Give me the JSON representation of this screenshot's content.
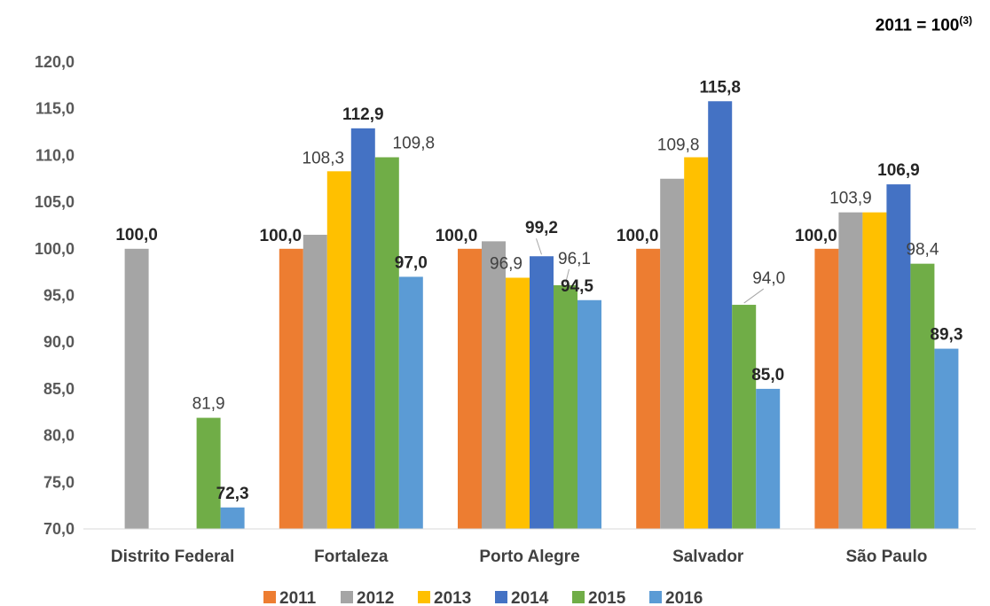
{
  "note": {
    "text": "2011 = 100",
    "sup": "(3)"
  },
  "colors": {
    "2011": "#ED7D31",
    "2012": "#A5A5A5",
    "2013": "#FFC000",
    "2014": "#4472C4",
    "2015": "#70AD47",
    "2016": "#5B9BD5"
  },
  "chart_data": {
    "type": "bar",
    "title": "",
    "xlabel": "",
    "ylabel": "",
    "ylim": [
      70,
      120
    ],
    "yticks": [
      "70,0",
      "75,0",
      "80,0",
      "85,0",
      "90,0",
      "95,0",
      "100,0",
      "105,0",
      "110,0",
      "115,0",
      "120,0"
    ],
    "categories": [
      "Distrito Federal",
      "Fortaleza",
      "Porto Alegre",
      "Salvador",
      "São Paulo"
    ],
    "legend_position": "bottom",
    "grid": false,
    "series": [
      {
        "name": "2011",
        "values": [
          null,
          100.0,
          100.0,
          100.0,
          100.0
        ],
        "labels": [
          "",
          "100,0",
          "100,0",
          "100,0",
          "100,0"
        ]
      },
      {
        "name": "2012",
        "values": [
          100.0,
          101.5,
          100.8,
          107.5,
          103.9
        ],
        "labels": [
          "100,0",
          "",
          "",
          "",
          "103,9"
        ]
      },
      {
        "name": "2013",
        "values": [
          null,
          108.3,
          96.9,
          109.8,
          103.9
        ],
        "labels": [
          "",
          "108,3",
          "96,9",
          "109,8",
          ""
        ]
      },
      {
        "name": "2014",
        "values": [
          null,
          112.9,
          99.2,
          115.8,
          106.9
        ],
        "labels": [
          "",
          "112,9",
          "99,2",
          "115,8",
          "106,9"
        ]
      },
      {
        "name": "2015",
        "values": [
          81.9,
          109.8,
          96.1,
          94.0,
          98.4
        ],
        "labels": [
          "81,9",
          "109,8",
          "96,1",
          "94,0",
          "98,4"
        ]
      },
      {
        "name": "2016",
        "values": [
          72.3,
          97.0,
          94.5,
          85.0,
          89.3
        ],
        "labels": [
          "72,3",
          "97,0",
          "94,5",
          "85,0",
          "89,3"
        ]
      }
    ]
  }
}
